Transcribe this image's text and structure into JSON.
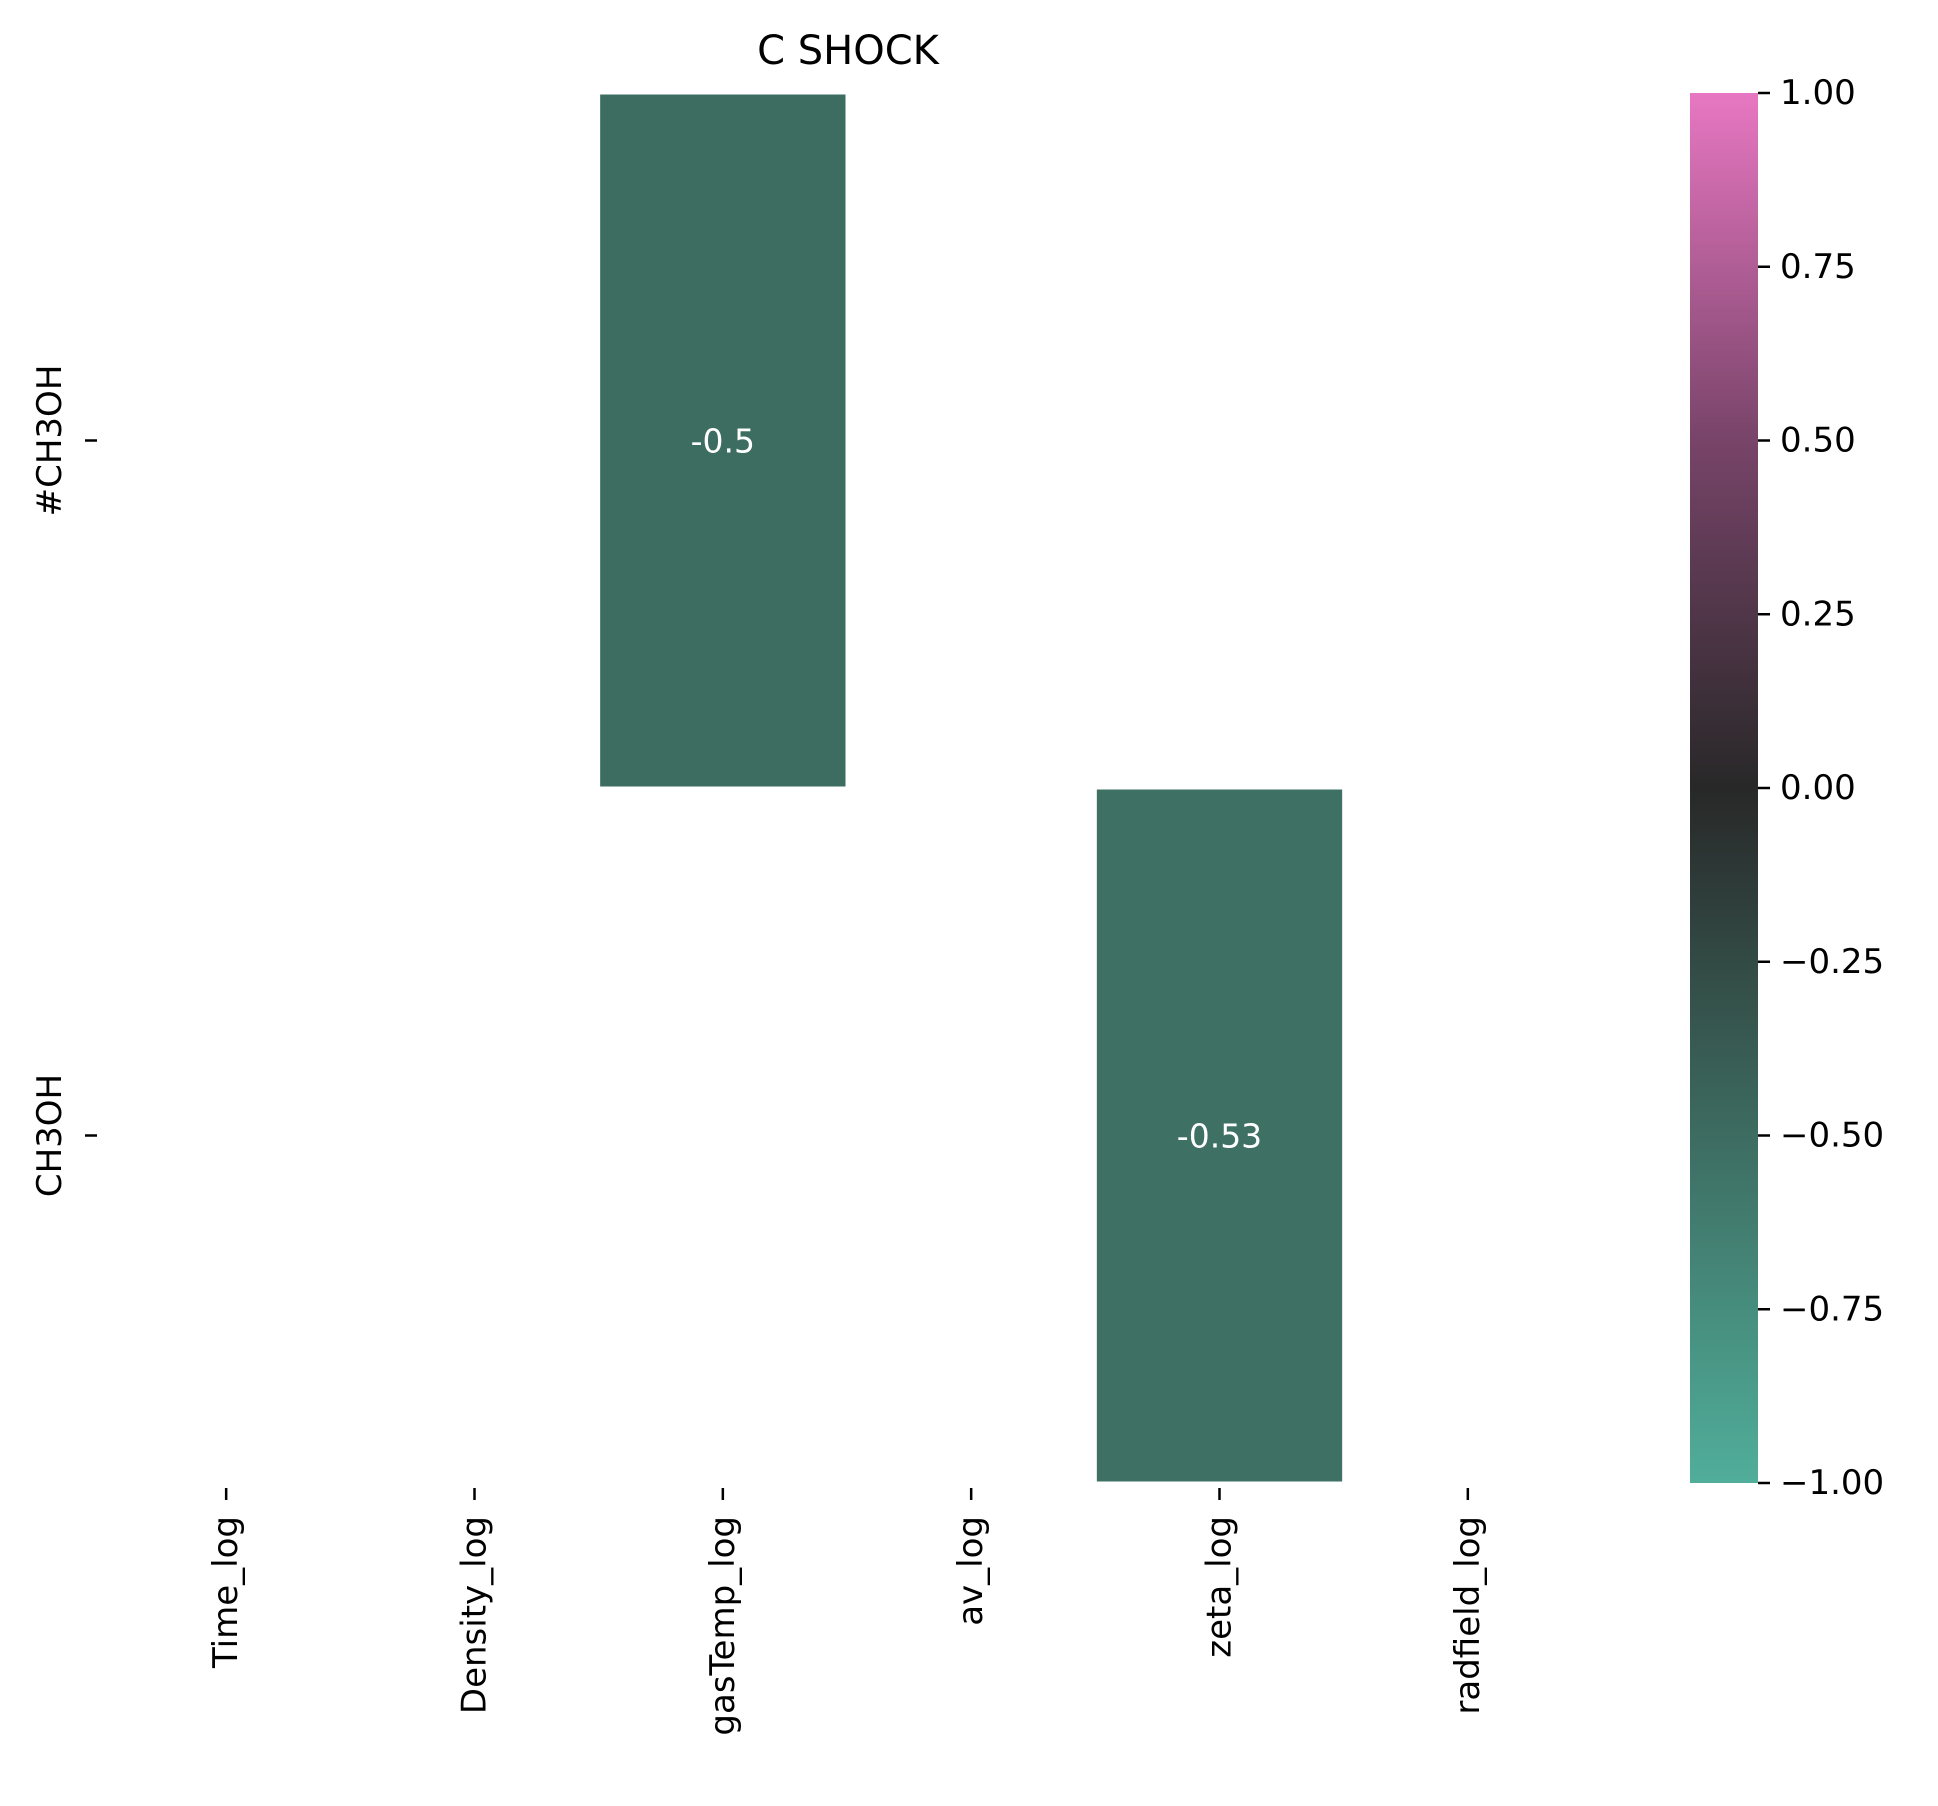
{
  "chart_data": {
    "type": "heatmap",
    "title": "C SHOCK",
    "x_categories": [
      "Time_log",
      "Density_log",
      "gasTemp_log",
      "av_log",
      "zeta_log",
      "radfield_log"
    ],
    "y_categories": [
      "#CH3OH",
      "CH3OH"
    ],
    "cells": [
      {
        "row": "#CH3OH",
        "col": "gasTemp_log",
        "value": -0.5,
        "label": "-0.5"
      },
      {
        "row": "CH3OH",
        "col": "zeta_log",
        "value": -0.53,
        "label": "-0.53"
      }
    ],
    "colorbar": {
      "range": [
        -1.0,
        1.0
      ],
      "ticks": [
        "−1.00",
        "−0.75",
        "−0.50",
        "−0.25",
        "0.00",
        "0.25",
        "0.50",
        "0.75",
        "1.00"
      ],
      "tick_values": [
        -1.0,
        -0.75,
        -0.5,
        -0.25,
        0.0,
        0.25,
        0.5,
        0.75,
        1.0
      ],
      "color_stops": [
        {
          "value": -1.0,
          "color": "#50ae9a"
        },
        {
          "value": -0.5,
          "color": "#3d6c61"
        },
        {
          "value": 0.0,
          "color": "#282828"
        },
        {
          "value": 0.5,
          "color": "#784469"
        },
        {
          "value": 1.0,
          "color": "#e877c2"
        }
      ]
    }
  }
}
